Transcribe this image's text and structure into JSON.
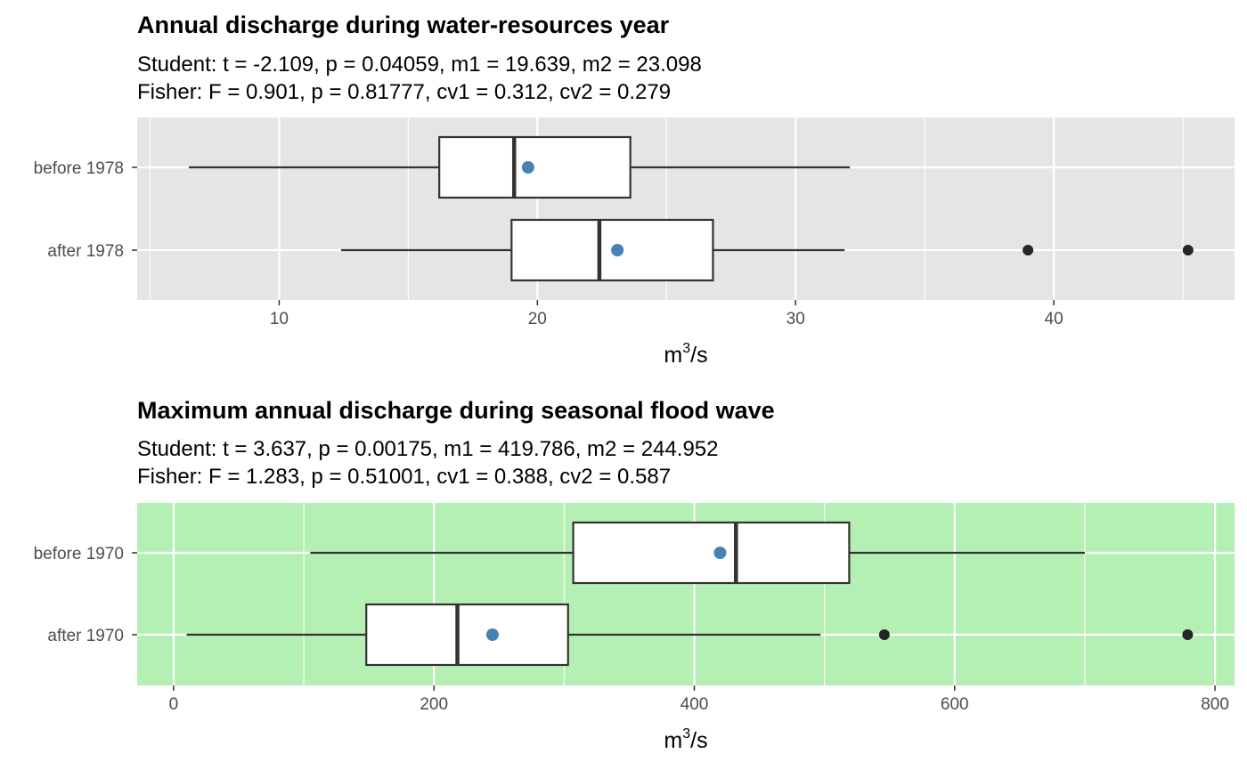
{
  "chart_data": [
    {
      "type": "boxplot",
      "title": "Annual discharge during water-resources year",
      "subtitle_lines": [
        "Student: t = -2.109, p = 0.04059, m1 = 19.639, m2 = 23.098",
        "Fisher: F = 0.901, p = 0.81777, cv1 = 0.312, cv2 = 0.279"
      ],
      "xlabel_base": "m",
      "xlabel_sup": "3",
      "xlabel_tail": "/s",
      "panel_color": "#e5e5e5",
      "xlim": [
        4.5,
        47.0
      ],
      "xticks": [
        10,
        20,
        30,
        40
      ],
      "xtick_labels": [
        "10",
        "20",
        "30",
        "40"
      ],
      "grid": true,
      "categories": [
        "before 1978",
        "after 1978"
      ],
      "boxes": [
        {
          "category": "before 1978",
          "whisker_low": 6.5,
          "q1": 16.2,
          "median": 19.1,
          "q3": 23.6,
          "whisker_high": 32.1,
          "mean": 19.639,
          "outliers": []
        },
        {
          "category": "after 1978",
          "whisker_low": 12.4,
          "q1": 19.0,
          "median": 22.4,
          "q3": 26.8,
          "whisker_high": 31.9,
          "mean": 23.098,
          "outliers": [
            39.0,
            45.2
          ]
        }
      ],
      "mean_color": "#4682b4",
      "outlier_color": "#262626"
    },
    {
      "type": "boxplot",
      "title": "Maximum annual discharge during seasonal flood wave",
      "subtitle_lines": [
        "Student: t = 3.637, p = 0.00175, m1 = 419.786, m2 = 244.952",
        "Fisher: F = 1.283, p = 0.51001, cv1 = 0.388, cv2 = 0.587"
      ],
      "xlabel_base": "m",
      "xlabel_sup": "3",
      "xlabel_tail": "/s",
      "panel_color": "#b4efb4",
      "xlim": [
        -28,
        815
      ],
      "xticks": [
        0,
        200,
        400,
        600,
        800
      ],
      "xtick_labels": [
        "0",
        "200",
        "400",
        "600",
        "800"
      ],
      "grid": true,
      "categories": [
        "before 1970",
        "after 1970"
      ],
      "boxes": [
        {
          "category": "before 1970",
          "whisker_low": 105,
          "q1": 307,
          "median": 432,
          "q3": 519,
          "whisker_high": 700,
          "mean": 419.786,
          "outliers": []
        },
        {
          "category": "after 1970",
          "whisker_low": 10,
          "q1": 148,
          "median": 218,
          "q3": 303,
          "whisker_high": 497,
          "mean": 244.952,
          "outliers": [
            546,
            779
          ]
        }
      ],
      "mean_color": "#4682b4",
      "outlier_color": "#262626"
    }
  ]
}
